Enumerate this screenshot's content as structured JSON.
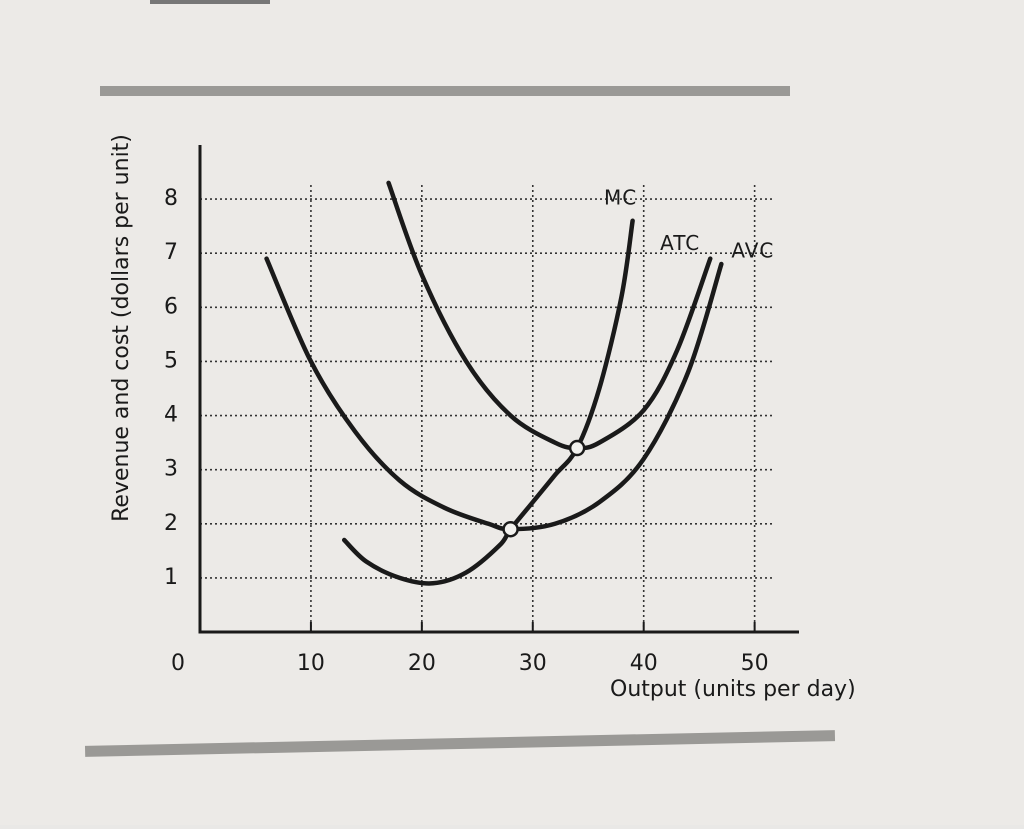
{
  "chart_data": {
    "type": "line",
    "x_label": "Output (units per day)",
    "y_label": "Revenue and cost (dollars per unit)",
    "xlim": [
      0,
      54
    ],
    "ylim": [
      0,
      9
    ],
    "xticks": [
      0,
      10,
      20,
      30,
      40,
      50
    ],
    "yticks": [
      1,
      2,
      3,
      4,
      5,
      6,
      7,
      8
    ],
    "grid": true,
    "color": "#1a1a1a",
    "series": [
      {
        "name": "MC",
        "color": "#1a1a1a",
        "x": [
          13,
          15,
          18,
          21,
          24,
          27,
          28,
          30,
          32,
          34,
          36,
          38,
          39
        ],
        "values": [
          1.7,
          1.3,
          1.0,
          0.9,
          1.1,
          1.6,
          1.9,
          2.4,
          2.9,
          3.4,
          4.5,
          6.2,
          7.6
        ]
      },
      {
        "name": "ATC",
        "color": "#1a1a1a",
        "x": [
          17,
          20,
          24,
          28,
          32,
          34,
          36,
          40,
          43,
          46
        ],
        "values": [
          8.3,
          6.6,
          5.0,
          4.0,
          3.5,
          3.4,
          3.5,
          4.1,
          5.2,
          6.9
        ]
      },
      {
        "name": "AVC",
        "color": "#1a1a1a",
        "x": [
          6,
          10,
          14,
          18,
          22,
          26,
          28,
          32,
          36,
          40,
          44,
          47
        ],
        "values": [
          6.9,
          5.0,
          3.7,
          2.8,
          2.3,
          2.0,
          1.9,
          2.0,
          2.4,
          3.2,
          4.8,
          6.8
        ]
      }
    ],
    "markers": {
      "x": [
        28,
        34
      ],
      "values": [
        1.9,
        3.4
      ]
    }
  }
}
